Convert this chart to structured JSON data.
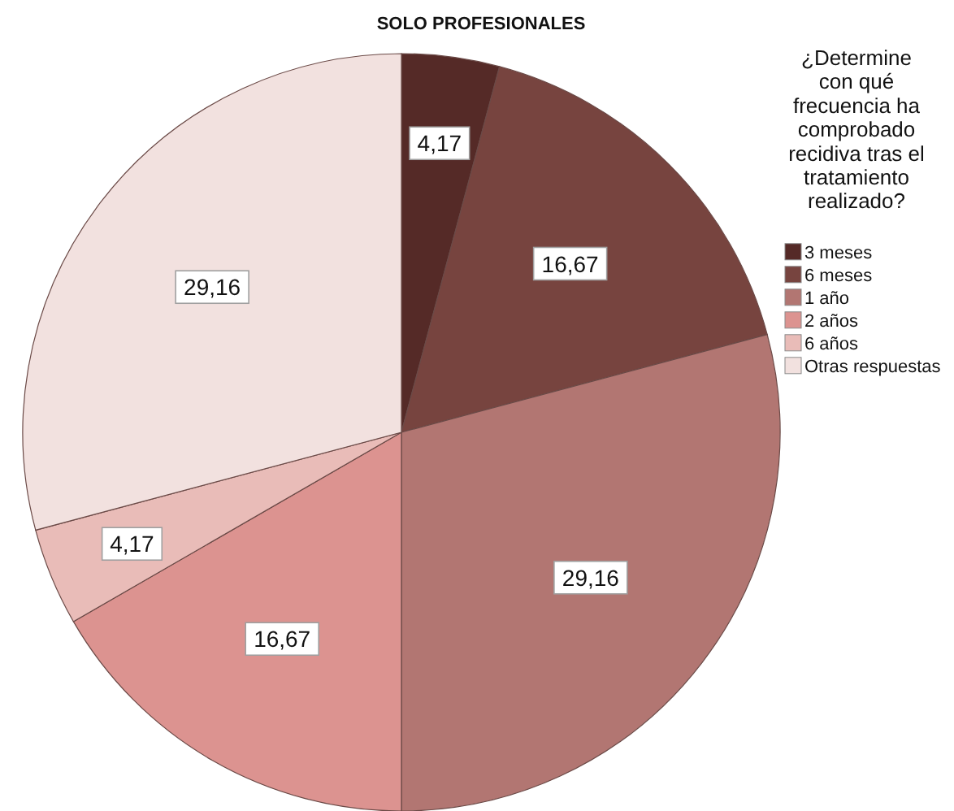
{
  "chart_data": {
    "type": "pie",
    "title": "SOLO PROFESIONALES",
    "legend_title": "¿Determine con qué frecuencia ha comprobado recidiva tras el tratamiento realizado?",
    "categories": [
      "3 meses",
      "6 meses",
      "1 año",
      "2 años",
      "6 años",
      "Otras respuestas"
    ],
    "values": [
      4.17,
      16.67,
      29.16,
      16.67,
      4.17,
      29.16
    ],
    "value_labels": [
      "4,17",
      "16,67",
      "29,16",
      "16,67",
      "4,17",
      "29,16"
    ],
    "colors": [
      "#552a27",
      "#77443f",
      "#b27672",
      "#dc9390",
      "#e9bcb8",
      "#f2e1df"
    ],
    "legend": "right"
  }
}
